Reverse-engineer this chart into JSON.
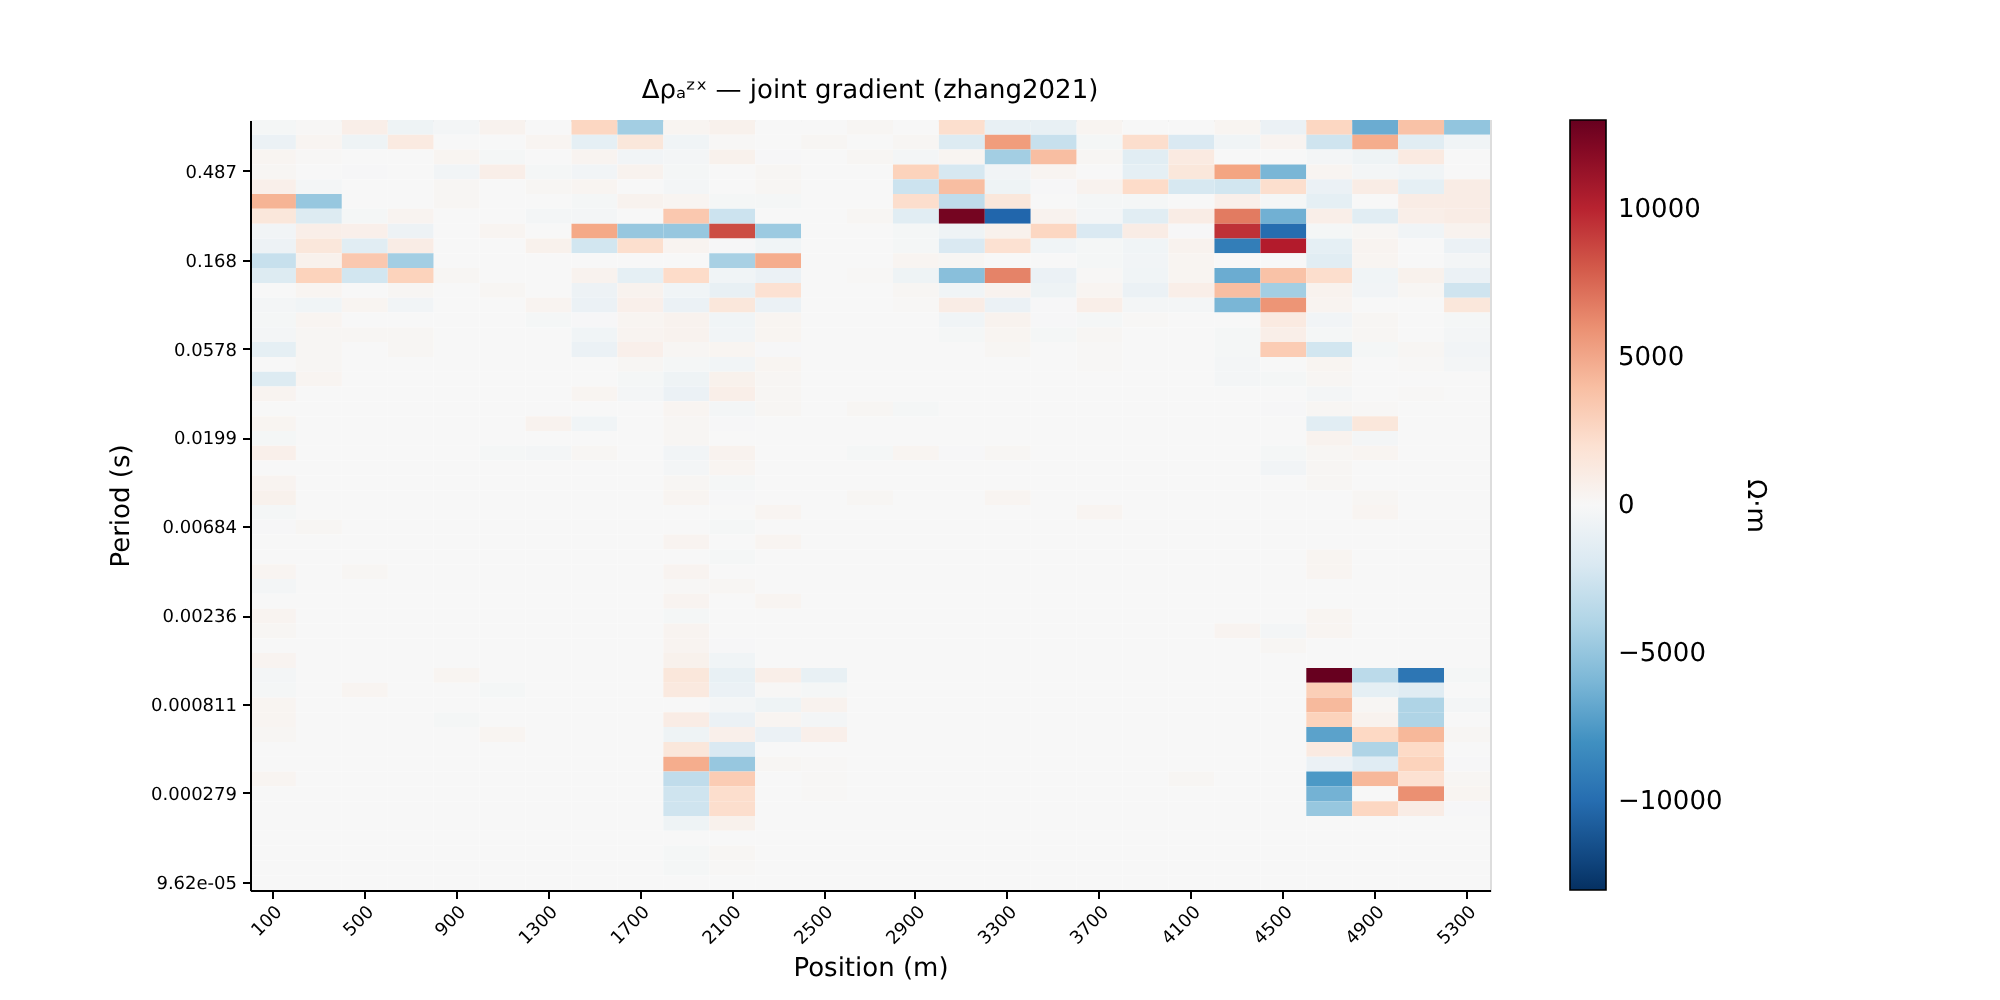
{
  "chart_data": {
    "type": "heatmap",
    "title": "Δρₐᶻˣ — joint gradient (zhang2021)",
    "xlabel": "Position (m)",
    "ylabel": "Period (s)",
    "clabel": "Ω·m",
    "categories": [
      "100",
      null,
      "500",
      null,
      "900",
      null,
      "1300",
      null,
      "1700",
      null,
      "2100",
      null,
      "2500",
      null,
      "2900",
      null,
      "3300",
      null,
      "3700",
      null,
      "4100",
      null,
      "4500",
      null,
      "4900",
      null,
      "5300"
    ],
    "y_categories": [
      null,
      null,
      null,
      "0.487",
      null,
      null,
      null,
      null,
      null,
      "0.168",
      null,
      null,
      null,
      null,
      null,
      "0.0578",
      null,
      null,
      null,
      null,
      null,
      "0.0199",
      null,
      null,
      null,
      null,
      null,
      "0.00684",
      null,
      null,
      null,
      null,
      null,
      "0.00236",
      null,
      null,
      null,
      null,
      null,
      "0.000811",
      null,
      null,
      null,
      null,
      null,
      "0.000279",
      null,
      null,
      null,
      null,
      null,
      "9.62e-05"
    ],
    "cells": [
      [
        -200,
        100,
        800,
        -600,
        -300,
        500,
        0,
        2800,
        -4500,
        300,
        600,
        0,
        0,
        200,
        0,
        2200,
        -1000,
        -1000,
        300,
        0,
        0,
        300,
        -800,
        2800,
        -6500,
        3800,
        -5200
      ],
      [
        -800,
        300,
        -600,
        1200,
        0,
        0,
        300,
        -1200,
        1500,
        -500,
        100,
        0,
        200,
        0,
        200,
        -1800,
        5500,
        -3000,
        -200,
        2300,
        -2000,
        -500,
        400,
        -2700,
        4800,
        -1500,
        -500
      ],
      [
        300,
        100,
        0,
        0,
        300,
        -200,
        0,
        400,
        -400,
        -300,
        600,
        -100,
        0,
        200,
        -300,
        300,
        -4500,
        4000,
        200,
        -1500,
        1200,
        0,
        0,
        -300,
        -600,
        1200,
        0
      ],
      [
        200,
        0,
        -100,
        0,
        -400,
        800,
        -200,
        -400,
        500,
        -200,
        0,
        200,
        0,
        0,
        3000,
        -2200,
        -400,
        300,
        0,
        -1200,
        1500,
        5200,
        -6000,
        300,
        -300,
        -500,
        0
      ],
      [
        700,
        -300,
        0,
        0,
        200,
        0,
        200,
        300,
        0,
        -300,
        0,
        200,
        0,
        0,
        -2800,
        4000,
        -600,
        -100,
        500,
        2500,
        -2200,
        -2500,
        2200,
        -800,
        1000,
        -1200,
        1000
      ],
      [
        4500,
        -5000,
        0,
        0,
        200,
        0,
        0,
        -200,
        500,
        300,
        -200,
        -200,
        0,
        0,
        2300,
        -3300,
        1500,
        0,
        -200,
        -200,
        0,
        700,
        -200,
        -1200,
        0,
        1000,
        1000
      ],
      [
        1500,
        -1800,
        -200,
        400,
        0,
        0,
        -300,
        -300,
        0,
        3500,
        -2800,
        0,
        0,
        200,
        -1500,
        12500,
        -10400,
        500,
        -300,
        -1500,
        1000,
        6800,
        -6300,
        800,
        -1500,
        800,
        1000
      ],
      [
        -400,
        800,
        700,
        -700,
        0,
        300,
        0,
        5000,
        -5000,
        -5000,
        8500,
        -4800,
        0,
        0,
        -200,
        -600,
        600,
        2800,
        -2000,
        1000,
        -100,
        9500,
        -10000,
        -200,
        200,
        -500,
        500
      ],
      [
        -700,
        1500,
        -1500,
        1000,
        0,
        0,
        600,
        -2500,
        2200,
        400,
        -100,
        -500,
        0,
        0,
        -200,
        -2000,
        2000,
        -500,
        -200,
        -500,
        500,
        -9000,
        10300,
        -1200,
        400,
        0,
        -800
      ],
      [
        -3000,
        600,
        3500,
        -4500,
        0,
        0,
        0,
        0,
        0,
        0,
        -4300,
        4800,
        0,
        0,
        300,
        200,
        0,
        0,
        -200,
        -400,
        300,
        0,
        0,
        -1500,
        300,
        0,
        -300
      ],
      [
        -1800,
        3000,
        -2500,
        3000,
        200,
        0,
        0,
        500,
        -1200,
        2500,
        -500,
        -800,
        0,
        100,
        -600,
        -5500,
        6500,
        -800,
        100,
        -500,
        300,
        -6500,
        3800,
        2300,
        -500,
        600,
        -800
      ],
      [
        0,
        300,
        0,
        200,
        0,
        200,
        0,
        -700,
        500,
        -500,
        -1000,
        2000,
        0,
        0,
        200,
        -500,
        500,
        -600,
        300,
        -800,
        800,
        4000,
        -4500,
        500,
        -400,
        200,
        -2700
      ],
      [
        -300,
        -500,
        300,
        -400,
        0,
        0,
        400,
        -800,
        700,
        -800,
        1500,
        -800,
        0,
        0,
        100,
        1000,
        -800,
        -100,
        800,
        -300,
        -300,
        -6000,
        5800,
        400,
        0,
        0,
        1500
      ],
      [
        -200,
        300,
        0,
        0,
        0,
        0,
        -200,
        -100,
        300,
        500,
        -500,
        300,
        0,
        0,
        0,
        -500,
        500,
        -100,
        -200,
        100,
        0,
        0,
        1200,
        -400,
        200,
        0,
        -200
      ],
      [
        -300,
        200,
        200,
        200,
        0,
        0,
        0,
        -500,
        400,
        500,
        -400,
        300,
        0,
        0,
        0,
        -200,
        300,
        -200,
        200,
        0,
        0,
        -200,
        800,
        -200,
        200,
        0,
        -300
      ],
      [
        -1200,
        200,
        0,
        200,
        0,
        0,
        0,
        -800,
        700,
        200,
        300,
        -100,
        0,
        0,
        0,
        0,
        200,
        0,
        100,
        0,
        0,
        -200,
        3300,
        -2500,
        -200,
        200,
        -400
      ],
      [
        0,
        200,
        0,
        0,
        0,
        0,
        0,
        0,
        200,
        -200,
        -400,
        300,
        0,
        0,
        0,
        0,
        0,
        0,
        100,
        0,
        0,
        -300,
        0,
        300,
        0,
        100,
        -300
      ],
      [
        -1800,
        300,
        0,
        0,
        0,
        0,
        0,
        0,
        -200,
        -600,
        600,
        200,
        0,
        0,
        0,
        0,
        0,
        0,
        0,
        0,
        0,
        -300,
        -200,
        200,
        0,
        0,
        0
      ],
      [
        400,
        0,
        0,
        0,
        0,
        0,
        0,
        300,
        -300,
        -800,
        800,
        200,
        0,
        0,
        0,
        0,
        0,
        0,
        0,
        0,
        0,
        0,
        0,
        -300,
        0,
        100,
        0
      ],
      [
        0,
        0,
        0,
        0,
        0,
        0,
        0,
        0,
        0,
        300,
        -300,
        200,
        0,
        200,
        -200,
        0,
        0,
        0,
        0,
        0,
        0,
        0,
        -100,
        200,
        100,
        0,
        0
      ],
      [
        300,
        0,
        0,
        0,
        0,
        0,
        500,
        -500,
        0,
        200,
        -100,
        0,
        0,
        0,
        0,
        0,
        0,
        0,
        0,
        0,
        0,
        0,
        0,
        -1500,
        1500,
        0,
        0
      ],
      [
        -200,
        0,
        0,
        0,
        0,
        0,
        0,
        0,
        0,
        200,
        0,
        0,
        0,
        0,
        0,
        0,
        0,
        0,
        0,
        0,
        0,
        0,
        0,
        500,
        -300,
        0,
        0
      ],
      [
        700,
        0,
        0,
        0,
        0,
        -200,
        -300,
        200,
        0,
        -400,
        500,
        0,
        0,
        -200,
        300,
        -100,
        200,
        0,
        0,
        0,
        0,
        0,
        -200,
        200,
        300,
        0,
        0
      ],
      [
        0,
        0,
        0,
        0,
        0,
        0,
        0,
        0,
        0,
        -300,
        300,
        0,
        0,
        0,
        0,
        0,
        0,
        0,
        0,
        0,
        0,
        0,
        -400,
        200,
        0,
        0,
        0
      ],
      [
        400,
        0,
        0,
        0,
        0,
        0,
        0,
        0,
        0,
        200,
        -200,
        0,
        0,
        0,
        0,
        0,
        0,
        0,
        0,
        0,
        0,
        0,
        0,
        200,
        0,
        0,
        0
      ],
      [
        600,
        0,
        0,
        0,
        0,
        0,
        0,
        0,
        0,
        300,
        -100,
        0,
        0,
        200,
        0,
        0,
        300,
        0,
        0,
        0,
        0,
        0,
        0,
        0,
        200,
        0,
        0
      ],
      [
        -200,
        0,
        0,
        0,
        0,
        0,
        0,
        0,
        0,
        0,
        0,
        300,
        0,
        0,
        0,
        0,
        0,
        0,
        300,
        0,
        0,
        0,
        0,
        0,
        300,
        0,
        0
      ],
      [
        -100,
        200,
        0,
        0,
        0,
        0,
        0,
        0,
        0,
        0,
        -200,
        0,
        0,
        0,
        0,
        0,
        0,
        0,
        0,
        0,
        0,
        0,
        0,
        0,
        0,
        0,
        0
      ],
      [
        0,
        0,
        0,
        0,
        0,
        0,
        0,
        0,
        0,
        400,
        0,
        300,
        0,
        0,
        0,
        0,
        0,
        0,
        0,
        0,
        0,
        0,
        0,
        0,
        0,
        0,
        0
      ],
      [
        0,
        0,
        0,
        0,
        0,
        0,
        0,
        0,
        0,
        0,
        -200,
        0,
        0,
        0,
        0,
        0,
        0,
        0,
        0,
        0,
        0,
        0,
        0,
        300,
        0,
        0,
        0
      ],
      [
        300,
        0,
        200,
        0,
        0,
        0,
        0,
        0,
        0,
        400,
        0,
        0,
        0,
        0,
        0,
        0,
        0,
        0,
        0,
        0,
        0,
        0,
        0,
        300,
        0,
        0,
        0
      ],
      [
        -300,
        0,
        0,
        0,
        0,
        0,
        0,
        0,
        0,
        100,
        200,
        0,
        0,
        0,
        0,
        0,
        0,
        0,
        0,
        0,
        0,
        0,
        0,
        0,
        0,
        0,
        0
      ],
      [
        0,
        0,
        0,
        0,
        0,
        0,
        0,
        0,
        0,
        400,
        0,
        300,
        0,
        0,
        0,
        0,
        0,
        0,
        0,
        0,
        0,
        0,
        0,
        0,
        0,
        0,
        0
      ],
      [
        400,
        0,
        0,
        0,
        0,
        0,
        0,
        0,
        0,
        -200,
        0,
        0,
        0,
        0,
        0,
        0,
        0,
        0,
        0,
        0,
        0,
        0,
        0,
        300,
        0,
        0,
        0
      ],
      [
        200,
        0,
        0,
        0,
        0,
        0,
        0,
        0,
        0,
        400,
        0,
        0,
        0,
        0,
        0,
        0,
        0,
        0,
        0,
        0,
        0,
        400,
        -300,
        300,
        0,
        0,
        0
      ],
      [
        0,
        0,
        0,
        0,
        0,
        0,
        0,
        0,
        0,
        400,
        -100,
        0,
        0,
        0,
        0,
        0,
        0,
        0,
        0,
        0,
        0,
        0,
        200,
        0,
        0,
        0,
        0
      ],
      [
        400,
        0,
        0,
        0,
        0,
        0,
        0,
        0,
        0,
        600,
        -500,
        0,
        0,
        0,
        0,
        0,
        0,
        0,
        0,
        0,
        0,
        0,
        0,
        0,
        0,
        0,
        0
      ],
      [
        -300,
        0,
        0,
        0,
        300,
        0,
        0,
        0,
        0,
        1500,
        -1000,
        800,
        -1000,
        0,
        0,
        0,
        0,
        0,
        0,
        0,
        0,
        0,
        0,
        13000,
        -3500,
        -9500,
        -200
      ],
      [
        -200,
        0,
        300,
        0,
        0,
        -200,
        0,
        0,
        0,
        1300,
        -800,
        100,
        -200,
        0,
        0,
        0,
        0,
        0,
        0,
        0,
        0,
        0,
        0,
        3200,
        -1200,
        -1600,
        0
      ],
      [
        300,
        0,
        0,
        0,
        0,
        0,
        0,
        0,
        0,
        0,
        -300,
        -600,
        500,
        0,
        0,
        0,
        0,
        0,
        0,
        0,
        0,
        0,
        0,
        4200,
        200,
        -4000,
        -300
      ],
      [
        300,
        0,
        0,
        0,
        -200,
        0,
        0,
        0,
        0,
        1000,
        -800,
        300,
        -300,
        0,
        0,
        0,
        0,
        0,
        0,
        0,
        0,
        0,
        0,
        3000,
        500,
        -4000,
        0
      ],
      [
        200,
        0,
        0,
        0,
        0,
        300,
        0,
        0,
        0,
        -600,
        700,
        -800,
        700,
        0,
        0,
        0,
        0,
        0,
        0,
        0,
        0,
        0,
        0,
        -7000,
        2700,
        4300,
        200
      ],
      [
        0,
        0,
        0,
        0,
        0,
        0,
        0,
        0,
        0,
        1500,
        -2000,
        0,
        0,
        0,
        0,
        0,
        0,
        0,
        0,
        0,
        0,
        0,
        0,
        1200,
        -4000,
        2600,
        0
      ],
      [
        0,
        0,
        0,
        0,
        0,
        0,
        0,
        0,
        0,
        4800,
        -5000,
        200,
        100,
        0,
        0,
        0,
        0,
        0,
        0,
        0,
        0,
        0,
        0,
        -800,
        -1600,
        3000,
        -100
      ],
      [
        300,
        0,
        0,
        0,
        0,
        0,
        0,
        0,
        0,
        -3300,
        3300,
        0,
        100,
        0,
        0,
        0,
        0,
        0,
        0,
        0,
        200,
        0,
        0,
        -7500,
        4300,
        2000,
        200
      ],
      [
        0,
        0,
        0,
        0,
        0,
        0,
        0,
        0,
        0,
        -2700,
        2300,
        0,
        100,
        0,
        0,
        0,
        0,
        0,
        0,
        0,
        0,
        0,
        0,
        -6200,
        0,
        6000,
        300
      ],
      [
        0,
        0,
        0,
        0,
        0,
        0,
        0,
        0,
        0,
        -2700,
        2300,
        0,
        0,
        0,
        0,
        0,
        0,
        0,
        0,
        0,
        0,
        0,
        0,
        -5000,
        2800,
        1000,
        -100
      ],
      [
        0,
        0,
        0,
        0,
        0,
        0,
        0,
        0,
        0,
        -600,
        600,
        0,
        0,
        0,
        0,
        0,
        0,
        0,
        0,
        0,
        0,
        0,
        0,
        0,
        0,
        0,
        0
      ],
      [
        0,
        0,
        0,
        0,
        0,
        0,
        0,
        0,
        0,
        0,
        0,
        0,
        0,
        0,
        0,
        0,
        0,
        0,
        0,
        0,
        0,
        0,
        0,
        0,
        0,
        0,
        0
      ],
      [
        0,
        0,
        0,
        0,
        0,
        0,
        0,
        0,
        0,
        -200,
        200,
        0,
        0,
        0,
        0,
        0,
        0,
        0,
        0,
        0,
        0,
        0,
        0,
        0,
        0,
        0,
        0
      ],
      [
        0,
        0,
        0,
        0,
        0,
        0,
        0,
        0,
        0,
        -200,
        100,
        0,
        0,
        0,
        0,
        0,
        0,
        0,
        0,
        0,
        0,
        0,
        0,
        0,
        0,
        0,
        0
      ],
      [
        0,
        0,
        0,
        0,
        0,
        0,
        0,
        0,
        0,
        0,
        0,
        0,
        0,
        0,
        0,
        0,
        0,
        0,
        0,
        0,
        0,
        0,
        0,
        0,
        0,
        0,
        0
      ]
    ],
    "clim": [
      -13000,
      13000
    ],
    "cticks": [
      -10000,
      -5000,
      0,
      5000,
      10000
    ]
  }
}
